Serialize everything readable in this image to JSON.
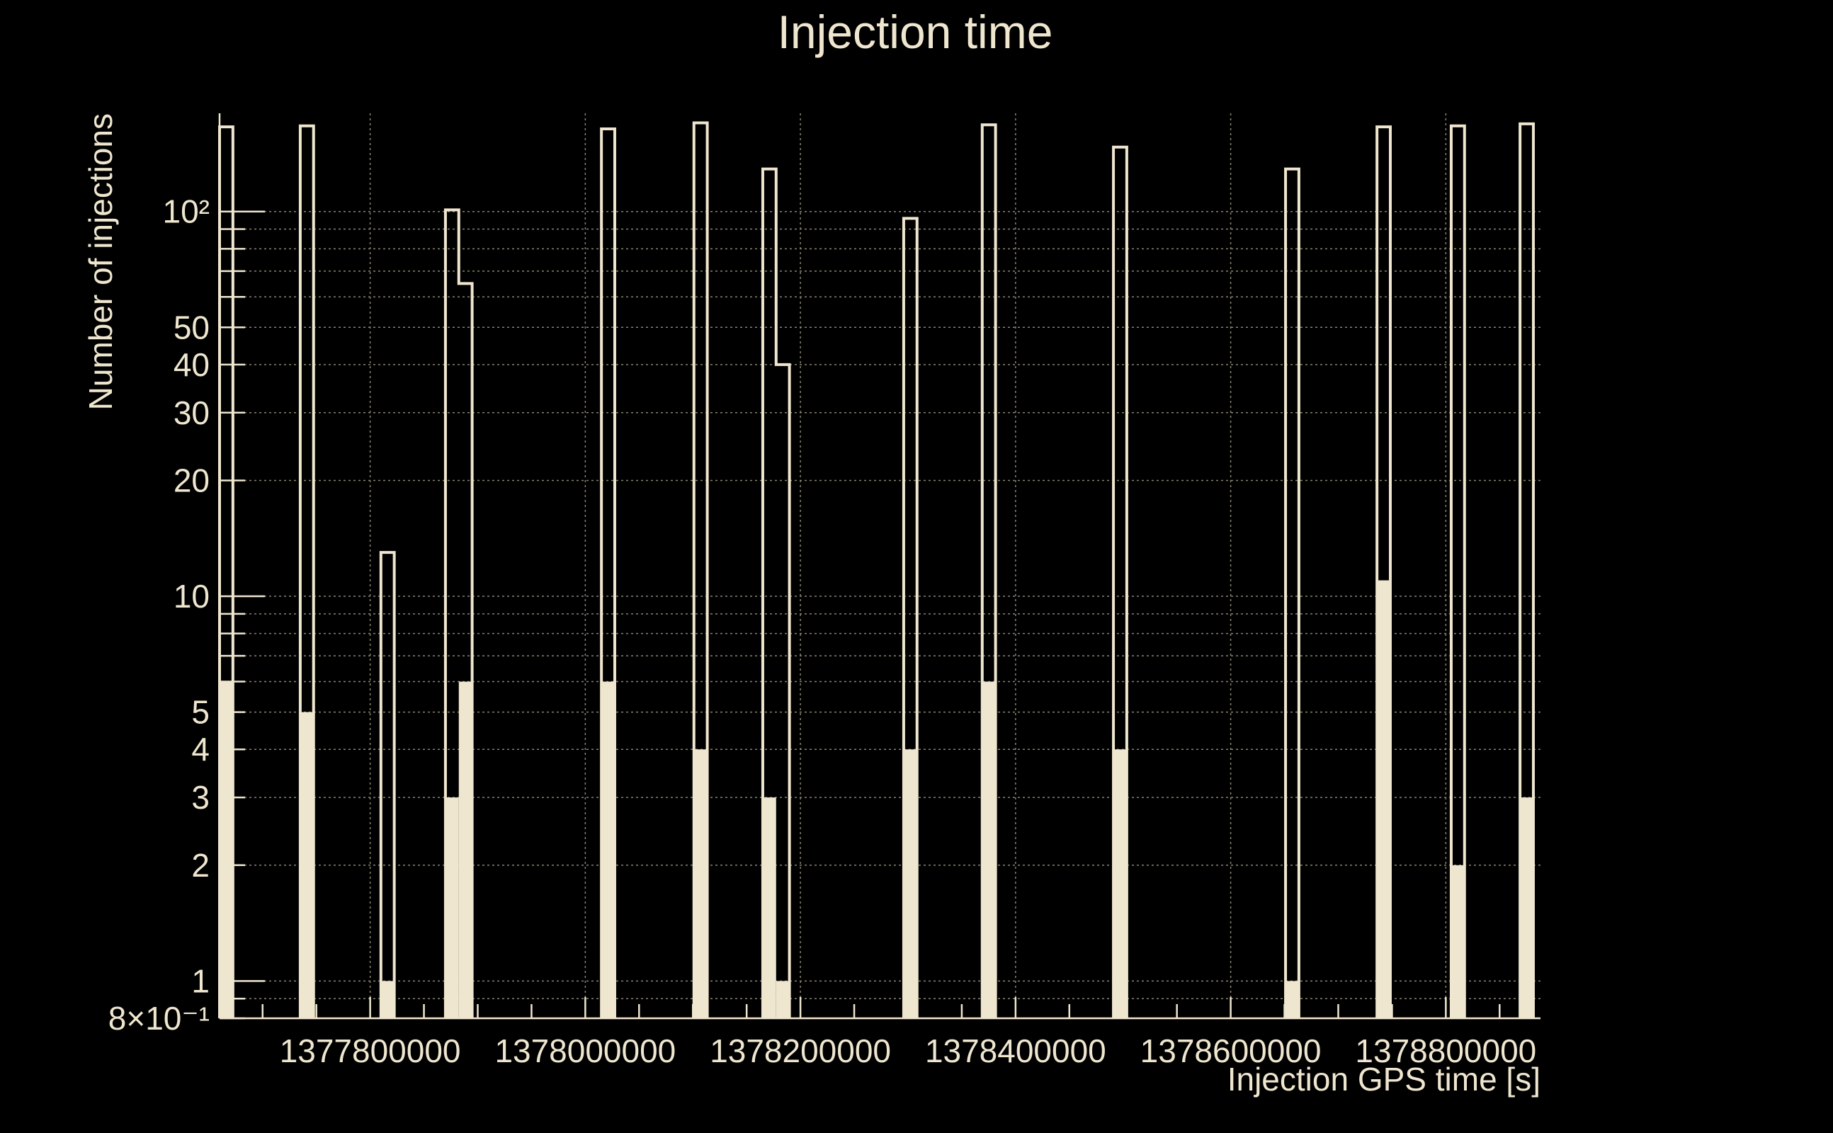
{
  "chart_data": {
    "type": "bar",
    "title": "Injection time",
    "xlabel": "Injection GPS time [s]",
    "ylabel": "Number of injections",
    "xlim": [
      1377660000,
      1378888000
    ],
    "ylim": [
      0.8,
      180
    ],
    "yscale": "log",
    "grid": true,
    "x_ticks": [
      1377800000,
      1378000000,
      1378200000,
      1378400000,
      1378600000,
      1378800000
    ],
    "x_tick_labels": [
      "1377800000",
      "1378000000",
      "1378200000",
      "1378400000",
      "1378600000",
      "1378800000"
    ],
    "y_ticks": [
      0.8,
      1,
      2,
      3,
      4,
      5,
      10,
      20,
      30,
      40,
      50,
      100
    ],
    "y_tick_labels": [
      "8×10⁻¹",
      "1",
      "2",
      "3",
      "4",
      "5",
      "10",
      "20",
      "30",
      "40",
      "50",
      "10²"
    ],
    "bin_width": 12400,
    "series": [
      {
        "style": "outline",
        "bins": [
          {
            "x": 1377660000,
            "value": 166
          },
          {
            "x": 1377735000,
            "value": 167
          },
          {
            "x": 1377810000,
            "value": 13
          },
          {
            "x": 1377870000,
            "value": 101
          },
          {
            "x": 1377882400,
            "value": 65
          },
          {
            "x": 1378015000,
            "value": 164
          },
          {
            "x": 1378101000,
            "value": 170
          },
          {
            "x": 1378165000,
            "value": 129
          },
          {
            "x": 1378177400,
            "value": 40
          },
          {
            "x": 1378296000,
            "value": 96
          },
          {
            "x": 1378369000,
            "value": 168
          },
          {
            "x": 1378491000,
            "value": 147
          },
          {
            "x": 1378651000,
            "value": 129
          },
          {
            "x": 1378736000,
            "value": 166
          },
          {
            "x": 1378805000,
            "value": 167
          },
          {
            "x": 1378869000,
            "value": 169
          }
        ]
      },
      {
        "style": "filled",
        "bins": [
          {
            "x": 1377660000,
            "value": 6
          },
          {
            "x": 1377735000,
            "value": 5
          },
          {
            "x": 1377810000,
            "value": 1
          },
          {
            "x": 1377870000,
            "value": 3
          },
          {
            "x": 1377882400,
            "value": 6
          },
          {
            "x": 1378015000,
            "value": 6
          },
          {
            "x": 1378101000,
            "value": 4
          },
          {
            "x": 1378165000,
            "value": 3
          },
          {
            "x": 1378177400,
            "value": 1
          },
          {
            "x": 1378296000,
            "value": 4
          },
          {
            "x": 1378369000,
            "value": 6
          },
          {
            "x": 1378491000,
            "value": 4
          },
          {
            "x": 1378651000,
            "value": 1
          },
          {
            "x": 1378736000,
            "value": 11
          },
          {
            "x": 1378805000,
            "value": 2
          },
          {
            "x": 1378869000,
            "value": 3
          }
        ]
      }
    ]
  }
}
